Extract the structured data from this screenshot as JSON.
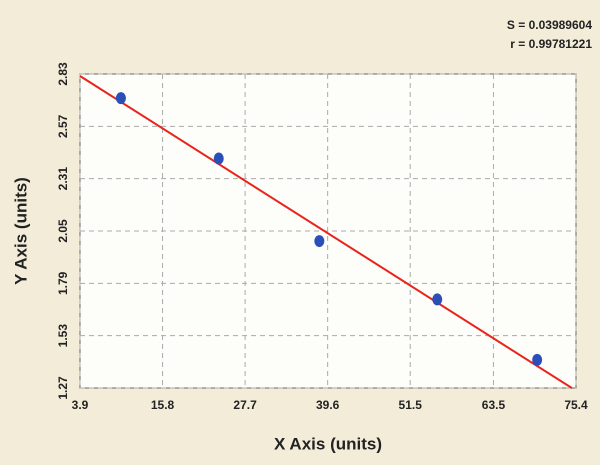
{
  "chart_data": {
    "type": "scatter",
    "annotations": [
      "S = 0.03989604",
      "r = 0.99781221"
    ],
    "x_label": "X Axis (units)",
    "y_label": "Y Axis (units)",
    "series": [
      {
        "color": "#2b4fb8",
        "x": [
          9.8,
          23.9,
          38.4,
          55.4,
          69.8
        ],
        "values": [
          2.71,
          2.41,
          2.0,
          1.71,
          1.41
        ]
      }
    ],
    "fit_line": {
      "color": "#e8241c",
      "x": [
        3.9,
        74.8
      ],
      "y": [
        2.82,
        1.27
      ]
    },
    "xlim": [
      3.9,
      75.4
    ],
    "xticks": [
      3.9,
      15.8,
      27.7,
      39.6,
      51.5,
      63.5,
      75.4
    ],
    "ylim": [
      1.27,
      2.83
    ],
    "yticks": [
      1.27,
      1.53,
      1.79,
      2.05,
      2.31,
      2.57,
      2.83
    ],
    "grid": true
  }
}
